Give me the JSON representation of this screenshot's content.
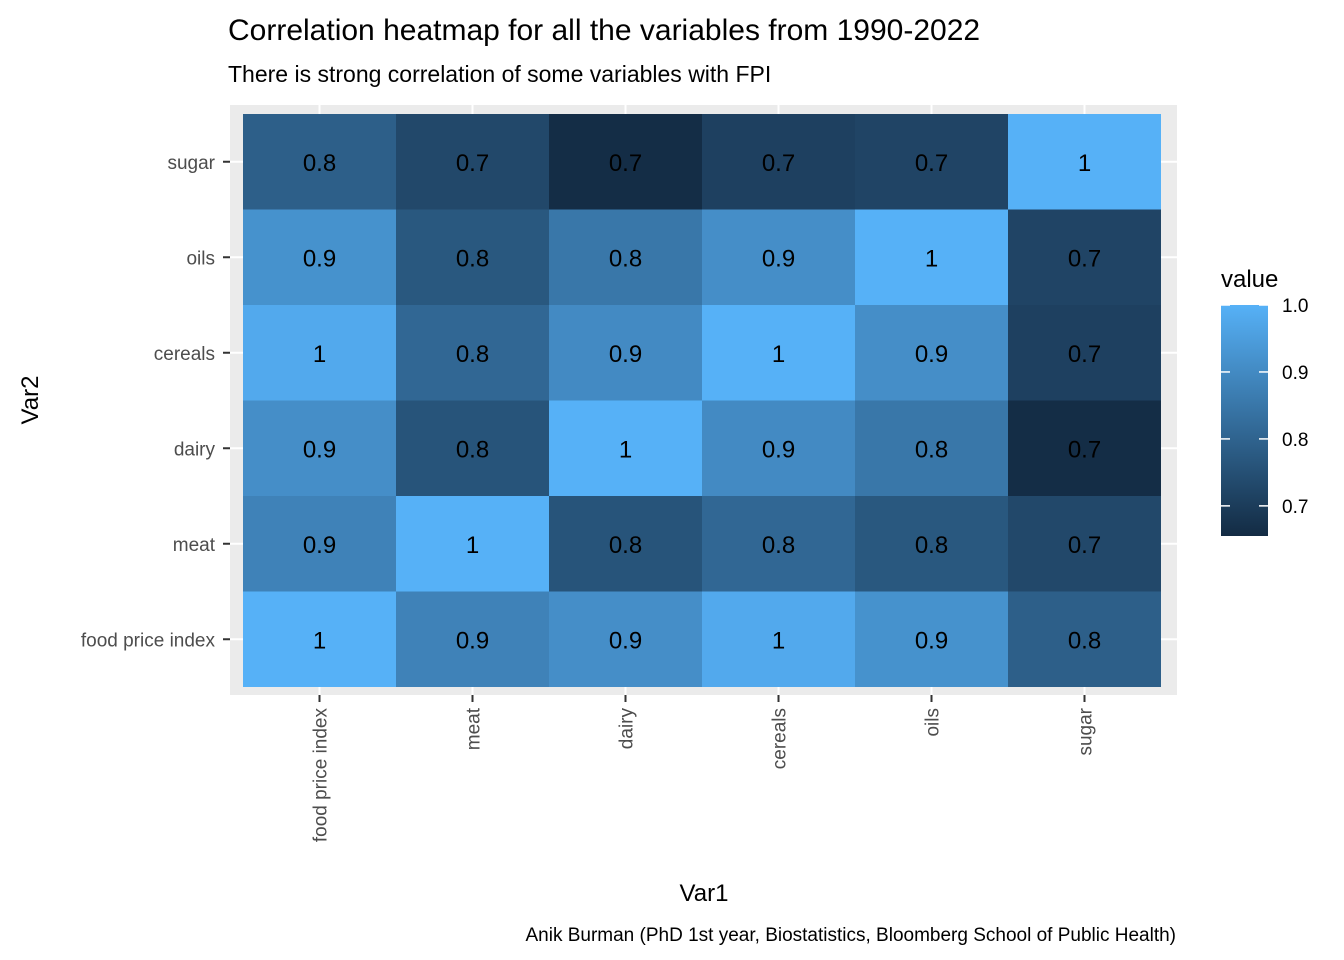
{
  "chart_data": {
    "type": "heatmap",
    "title": "Correlation heatmap for all the variables from 1990-2022",
    "subtitle": "There is strong correlation of some variables with FPI",
    "xlabel": "Var1",
    "ylabel": "Var2",
    "caption": "Anik Burman (PhD 1st year, Biostatistics, Bloomberg School of Public Health)",
    "x_categories": [
      "food price index",
      "meat",
      "dairy",
      "cereals",
      "oils",
      "sugar"
    ],
    "y_categories": [
      "food price index",
      "meat",
      "dairy",
      "cereals",
      "oils",
      "sugar"
    ],
    "values": [
      [
        1.0,
        0.88,
        0.91,
        0.98,
        0.92,
        0.79
      ],
      [
        0.88,
        1.0,
        0.76,
        0.81,
        0.77,
        0.73
      ],
      [
        0.91,
        0.76,
        1.0,
        0.9,
        0.85,
        0.66
      ],
      [
        0.98,
        0.81,
        0.9,
        1.0,
        0.91,
        0.71
      ],
      [
        0.92,
        0.77,
        0.85,
        0.91,
        1.0,
        0.72
      ],
      [
        0.79,
        0.73,
        0.66,
        0.71,
        0.72,
        1.0
      ]
    ],
    "labels": [
      [
        "1",
        "0.9",
        "0.9",
        "1",
        "0.9",
        "0.8"
      ],
      [
        "0.9",
        "1",
        "0.8",
        "0.8",
        "0.8",
        "0.7"
      ],
      [
        "0.9",
        "0.8",
        "1",
        "0.9",
        "0.8",
        "0.7"
      ],
      [
        "1",
        "0.8",
        "0.9",
        "1",
        "0.9",
        "0.7"
      ],
      [
        "0.9",
        "0.8",
        "0.8",
        "0.9",
        "1",
        "0.7"
      ],
      [
        "0.8",
        "0.7",
        "0.7",
        "0.7",
        "0.7",
        "1"
      ]
    ],
    "color_scale": {
      "low": "#132B43",
      "high": "#56B1F7",
      "range": [
        0.655,
        1.0
      ]
    },
    "legend": {
      "title": "value",
      "position": "right",
      "breaks": [
        0.7,
        0.8,
        0.9,
        1.0
      ],
      "break_labels": [
        "0.7",
        "0.8",
        "0.9",
        "1.0"
      ]
    },
    "panel_background": "#EBEBEB",
    "grid": true
  }
}
